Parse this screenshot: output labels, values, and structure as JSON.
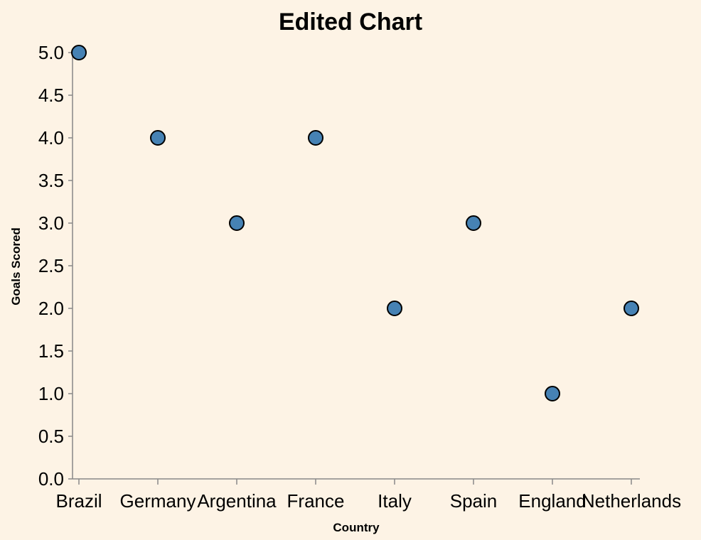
{
  "chart_data": {
    "type": "scatter",
    "title": "Edited Chart",
    "xlabel": "Country",
    "ylabel": "Goals Scored",
    "categories": [
      "Brazil",
      "Germany",
      "Argentina",
      "France",
      "Italy",
      "Spain",
      "England",
      "Netherlands"
    ],
    "values": [
      5,
      4,
      3,
      4,
      2,
      3,
      1,
      2
    ],
    "ylim": [
      0,
      5
    ],
    "yticks": [
      "0.0",
      "0.5",
      "1.0",
      "1.5",
      "2.0",
      "2.5",
      "3.0",
      "3.5",
      "4.0",
      "4.5",
      "5.0"
    ],
    "grid": false,
    "colors": {
      "point_fill": "#4682b4",
      "point_stroke": "#000000",
      "background": "#fdf3e5"
    }
  }
}
